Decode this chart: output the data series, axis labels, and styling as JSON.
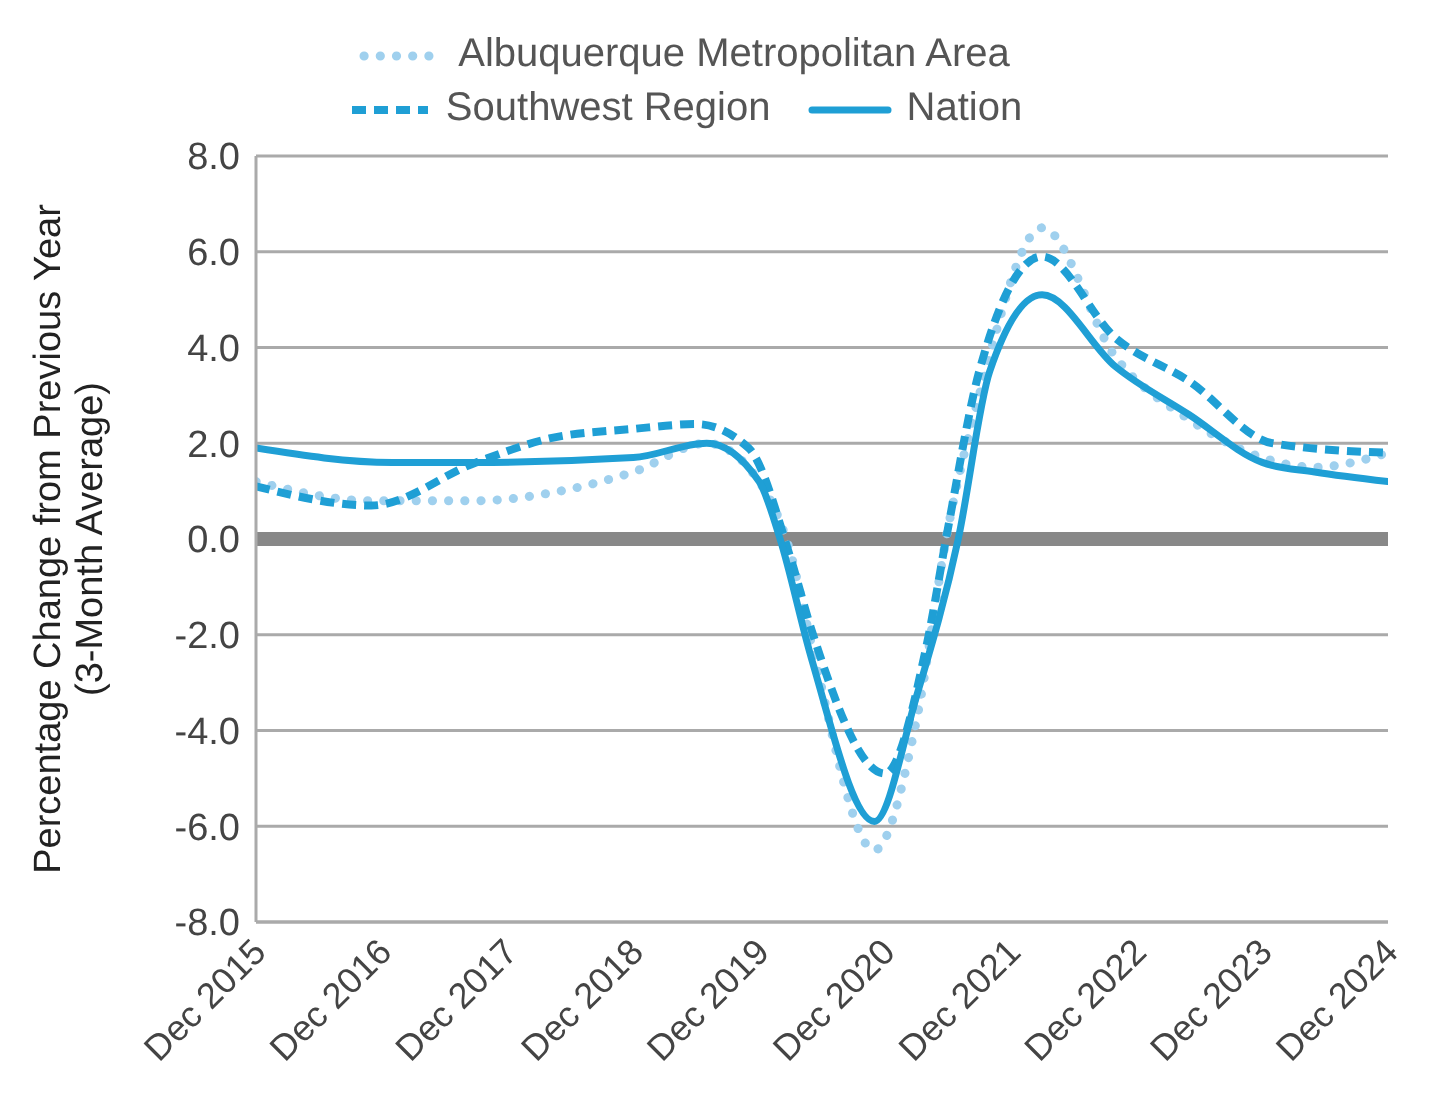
{
  "chart_data": {
    "type": "line",
    "ylabel": "Percentage Change from Previous Year\n(3-Month Average)",
    "xlim": [
      "2015-12",
      "2024-12"
    ],
    "xticks": [
      {
        "value": "2015-12",
        "label": "Dec 2015"
      },
      {
        "value": "2016-12",
        "label": "Dec 2016"
      },
      {
        "value": "2017-12",
        "label": "Dec 2017"
      },
      {
        "value": "2018-12",
        "label": "Dec 2018"
      },
      {
        "value": "2019-12",
        "label": "Dec 2019"
      },
      {
        "value": "2020-12",
        "label": "Dec 2020"
      },
      {
        "value": "2021-12",
        "label": "Dec 2021"
      },
      {
        "value": "2022-12",
        "label": "Dec 2022"
      },
      {
        "value": "2023-12",
        "label": "Dec 2023"
      },
      {
        "value": "2024-12",
        "label": "Dec 2024"
      }
    ],
    "ylim": [
      -8,
      8
    ],
    "yticks": [
      {
        "value": 8,
        "label": "8.0"
      },
      {
        "value": 6,
        "label": "6.0"
      },
      {
        "value": 4,
        "label": "4.0"
      },
      {
        "value": 2,
        "label": "2.0"
      },
      {
        "value": 0,
        "label": "0.0"
      },
      {
        "value": -2,
        "label": "-2.0"
      },
      {
        "value": -4,
        "label": "-4.0"
      },
      {
        "value": -6,
        "label": "-6.0"
      },
      {
        "value": -8,
        "label": "-8.0"
      }
    ],
    "grid": "y",
    "legend": "top",
    "marker": "none",
    "ref_lines": [
      {
        "axis": "y",
        "value": 0,
        "color": "#888888"
      }
    ],
    "series": [
      {
        "name": "Albuquerque Metropolitan Area",
        "color": "#9fd0ee",
        "line_style": "dotted",
        "x": [
          "2015-12",
          "2016-11",
          "2017-09",
          "2018-05",
          "2018-12",
          "2019-07",
          "2019-12",
          "2020-03",
          "2020-05",
          "2020-11",
          "2021-03",
          "2021-06",
          "2021-09",
          "2022-03",
          "2022-10",
          "2023-05",
          "2023-12",
          "2024-05",
          "2024-12"
        ],
        "values": [
          1.2,
          0.8,
          0.8,
          1.0,
          1.4,
          2.0,
          1.2,
          -0.3,
          -2.2,
          -6.5,
          -3.8,
          0.2,
          3.0,
          6.5,
          3.8,
          2.5,
          1.7,
          1.5,
          1.8
        ]
      },
      {
        "name": "Southwest Region",
        "color": "#1f9fd5",
        "line_style": "dashed",
        "x": [
          "2015-12",
          "2016-11",
          "2017-09",
          "2018-04",
          "2018-12",
          "2019-06",
          "2019-11",
          "2020-03",
          "2020-05",
          "2020-12",
          "2021-04",
          "2021-06",
          "2021-09",
          "2022-03",
          "2022-10",
          "2023-05",
          "2024-01",
          "2024-12"
        ],
        "values": [
          1.1,
          0.7,
          1.6,
          2.1,
          2.3,
          2.4,
          1.9,
          -0.4,
          -1.9,
          -4.9,
          -2.2,
          0.2,
          3.5,
          5.9,
          4.2,
          3.3,
          2.0,
          1.8
        ]
      },
      {
        "name": "Nation",
        "color": "#1f9fd5",
        "line_style": "solid",
        "x": [
          "2015-12",
          "2017-01",
          "2017-09",
          "2018-12",
          "2019-07",
          "2019-12",
          "2020-02",
          "2020-05",
          "2020-11",
          "2021-03",
          "2021-07",
          "2021-10",
          "2022-03",
          "2022-10",
          "2023-05",
          "2023-12",
          "2024-05",
          "2024-12"
        ],
        "values": [
          1.9,
          1.6,
          1.6,
          1.7,
          2.0,
          1.2,
          0.0,
          -2.5,
          -5.9,
          -3.3,
          0.0,
          3.5,
          5.1,
          3.6,
          2.6,
          1.6,
          1.4,
          1.2
        ]
      }
    ]
  }
}
